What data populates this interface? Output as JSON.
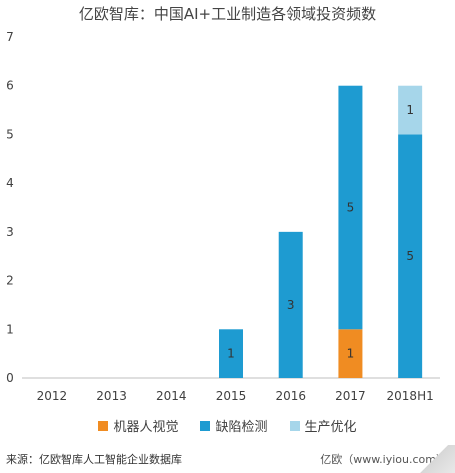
{
  "title": "亿欧智库：中国AI+工业制造各领域投资频数",
  "chart_data": {
    "type": "bar",
    "stacked": true,
    "categories": [
      "2012",
      "2013",
      "2014",
      "2015",
      "2016",
      "2017",
      "2018H1"
    ],
    "series": [
      {
        "name": "机器人视觉",
        "color": "#f08c22",
        "values": [
          0,
          0,
          0,
          0,
          0,
          1,
          0
        ]
      },
      {
        "name": "缺陷检测",
        "color": "#1e9bd1",
        "values": [
          0,
          0,
          0,
          1,
          3,
          5,
          5
        ]
      },
      {
        "name": "生产优化",
        "color": "#a6d6ea",
        "values": [
          0,
          0,
          0,
          0,
          0,
          0,
          1
        ]
      }
    ],
    "ylim": [
      0,
      7
    ],
    "yticks": [
      0,
      1,
      2,
      3,
      4,
      5,
      6,
      7
    ],
    "grid": false,
    "legend_position": "bottom"
  },
  "footer": {
    "source": "来源：亿欧智库人工智能企业数据库",
    "credit": "亿欧（www.iyiou.com）"
  }
}
